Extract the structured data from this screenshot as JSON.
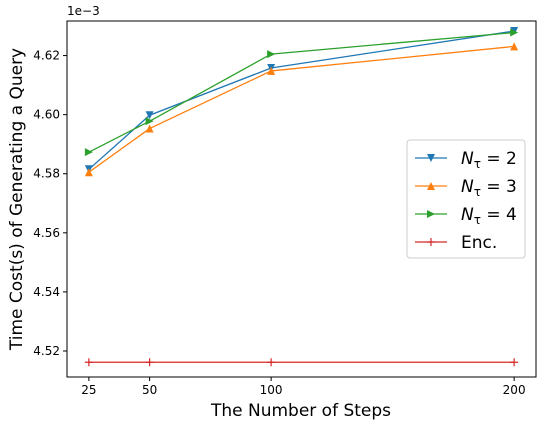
{
  "chart_data": {
    "type": "line",
    "xlabel": "The Number of Steps",
    "ylabel": "Time Cost(s) of Generating a Query",
    "offset_text": "1e−3",
    "x": [
      25,
      50,
      100,
      200
    ],
    "xticks": [
      "25",
      "50",
      "100",
      "200"
    ],
    "yticks": [
      "4.52",
      "4.54",
      "4.56",
      "4.58",
      "4.60",
      "4.62"
    ],
    "ytick_values": [
      4.52,
      4.54,
      4.56,
      4.58,
      4.6,
      4.62
    ],
    "xlim": [
      16,
      209
    ],
    "ylim": [
      4.5112,
      4.6317
    ],
    "grid": false,
    "legend_position": "center-right",
    "series": [
      {
        "name": "N_τ = 2",
        "legend": {
          "base": "N",
          "sub": "τ",
          "rest": " = 2"
        },
        "marker": "triangle-down",
        "color": "#1f77b4",
        "values": [
          4.5815,
          4.5998,
          4.6158,
          4.6283
        ]
      },
      {
        "name": "N_τ = 3",
        "legend": {
          "base": "N",
          "sub": "τ",
          "rest": " = 3"
        },
        "marker": "triangle-up",
        "color": "#ff7f0e",
        "values": [
          4.5805,
          4.5953,
          4.6148,
          4.6231
        ]
      },
      {
        "name": "N_τ = 4",
        "legend": {
          "base": "N",
          "sub": "τ",
          "rest": " = 4"
        },
        "marker": "triangle-right",
        "color": "#2ca02c",
        "values": [
          4.5873,
          4.5978,
          4.6205,
          4.6278
        ]
      },
      {
        "name": "Enc.",
        "legend": {
          "base": "Enc.",
          "sub": "",
          "rest": ""
        },
        "marker": "plus",
        "color": "#d62728",
        "values": [
          4.5162,
          4.5162,
          4.5162,
          4.5162
        ]
      }
    ]
  }
}
